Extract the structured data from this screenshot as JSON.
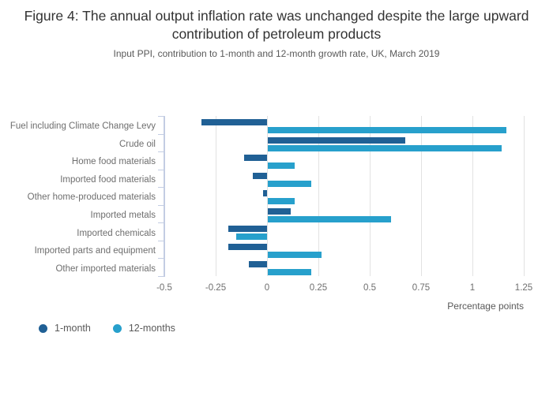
{
  "chart_data": {
    "type": "bar",
    "orientation": "horizontal",
    "title": "Figure 4: The annual output inflation rate was unchanged despite the large upward contribution of petroleum products",
    "subtitle": "Input PPI, contribution to 1-month and 12-month growth rate, UK, March 2019",
    "categories": [
      "Fuel including Climate Change Levy",
      "Crude oil",
      "Home food materials",
      "Imported food materials",
      "Other home-produced materials",
      "Imported metals",
      "Imported chemicals",
      "Imported parts and equipment",
      "Other imported materials"
    ],
    "series": [
      {
        "name": "1-month",
        "color": "#206095",
        "values": [
          -0.32,
          0.67,
          -0.11,
          -0.07,
          -0.02,
          0.11,
          -0.19,
          -0.19,
          -0.09
        ]
      },
      {
        "name": "12-months",
        "color": "#27a0cc",
        "values": [
          1.16,
          1.14,
          0.13,
          0.21,
          0.13,
          0.6,
          -0.15,
          0.26,
          0.21
        ]
      }
    ],
    "xlabel": "Percentage points",
    "xlim": [
      -0.5,
      1.25
    ],
    "x_ticks": [
      {
        "label": "-0.5",
        "value": -0.5
      },
      {
        "label": "-0.25",
        "value": -0.25
      },
      {
        "label": "0",
        "value": 0
      },
      {
        "label": "0.25",
        "value": 0.25
      },
      {
        "label": "0.5",
        "value": 0.5
      },
      {
        "label": "0.75",
        "value": 0.75
      },
      {
        "label": "1",
        "value": 1
      },
      {
        "label": "1.25",
        "value": 1.25
      }
    ],
    "grid": true,
    "legend_position": "bottom-left"
  }
}
